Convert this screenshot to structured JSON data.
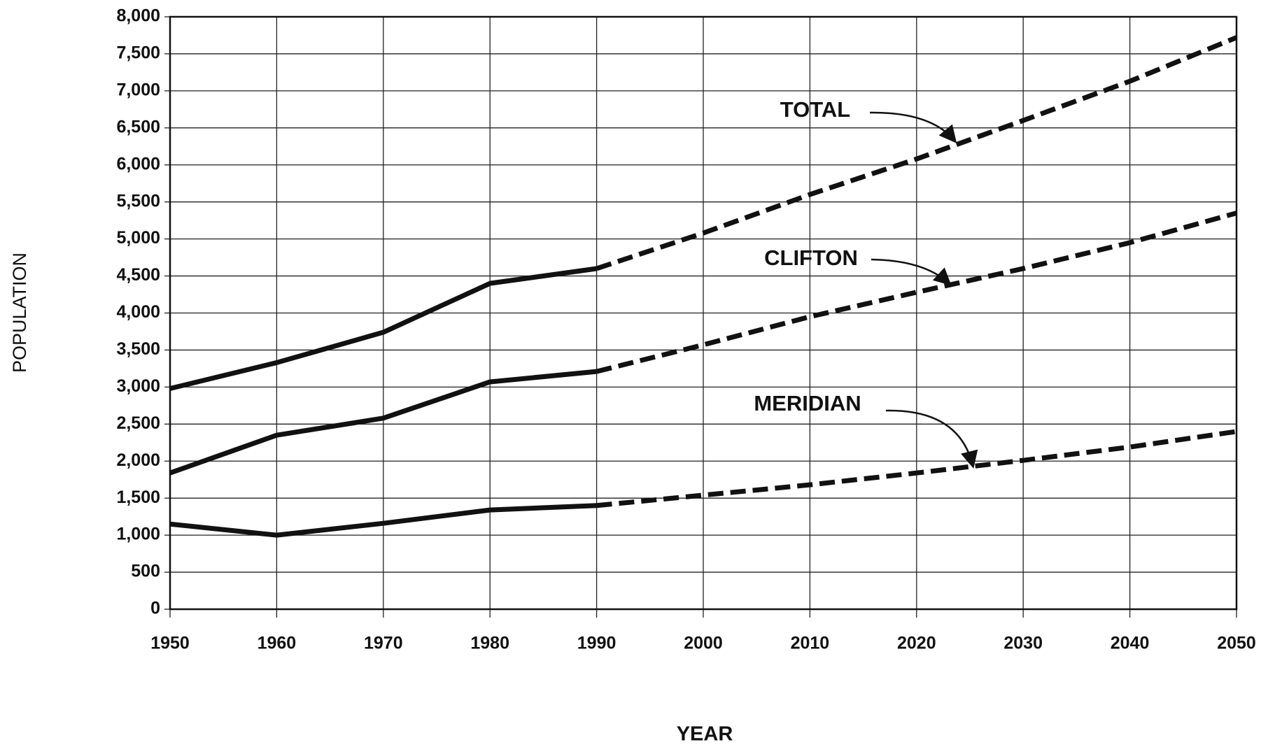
{
  "chart_data": {
    "type": "line",
    "xlabel": "YEAR",
    "ylabel": "POPULATION",
    "x": [
      1950,
      1960,
      1970,
      1980,
      1990,
      2000,
      2010,
      2020,
      2030,
      2040,
      2050
    ],
    "projection_start": 1990,
    "series": [
      {
        "name": "TOTAL",
        "color": "#111111",
        "values": [
          2980,
          3330,
          3740,
          4400,
          4600,
          5080,
          5600,
          6080,
          6600,
          7130,
          7720
        ]
      },
      {
        "name": "CLIFTON",
        "color": "#111111",
        "values": [
          1840,
          2350,
          2580,
          3070,
          3210,
          3570,
          3950,
          4280,
          4600,
          4950,
          5350
        ]
      },
      {
        "name": "MERIDIAN",
        "color": "#111111",
        "values": [
          1150,
          1000,
          1160,
          1340,
          1400,
          1540,
          1680,
          1840,
          2010,
          2190,
          2400
        ]
      }
    ],
    "xlim": [
      1950,
      2050
    ],
    "xticks": [
      1950,
      1960,
      1970,
      1980,
      1990,
      2000,
      2010,
      2020,
      2030,
      2040,
      2050
    ],
    "ylim": [
      0,
      8000
    ],
    "yticks": [
      0,
      500,
      {
        "value": 1000,
        "label": "1,000"
      },
      {
        "value": 1500,
        "label": "1,500"
      },
      {
        "value": 2000,
        "label": "2,000"
      },
      {
        "value": 2500,
        "label": "2,500"
      },
      {
        "value": 3000,
        "label": "3,000"
      },
      {
        "value": 3500,
        "label": "3,500"
      },
      {
        "value": 4000,
        "label": "4,000"
      },
      {
        "value": 4500,
        "label": "4,500"
      },
      {
        "value": 5000,
        "label": "5,000"
      },
      {
        "value": 5500,
        "label": "5,500"
      },
      {
        "value": 6000,
        "label": "6,000"
      },
      {
        "value": 6500,
        "label": "6,500"
      },
      {
        "value": 7000,
        "label": "7,000"
      },
      {
        "value": 7500,
        "label": "7,500"
      },
      {
        "value": 8000,
        "label": "8,000"
      }
    ],
    "grid": true
  }
}
